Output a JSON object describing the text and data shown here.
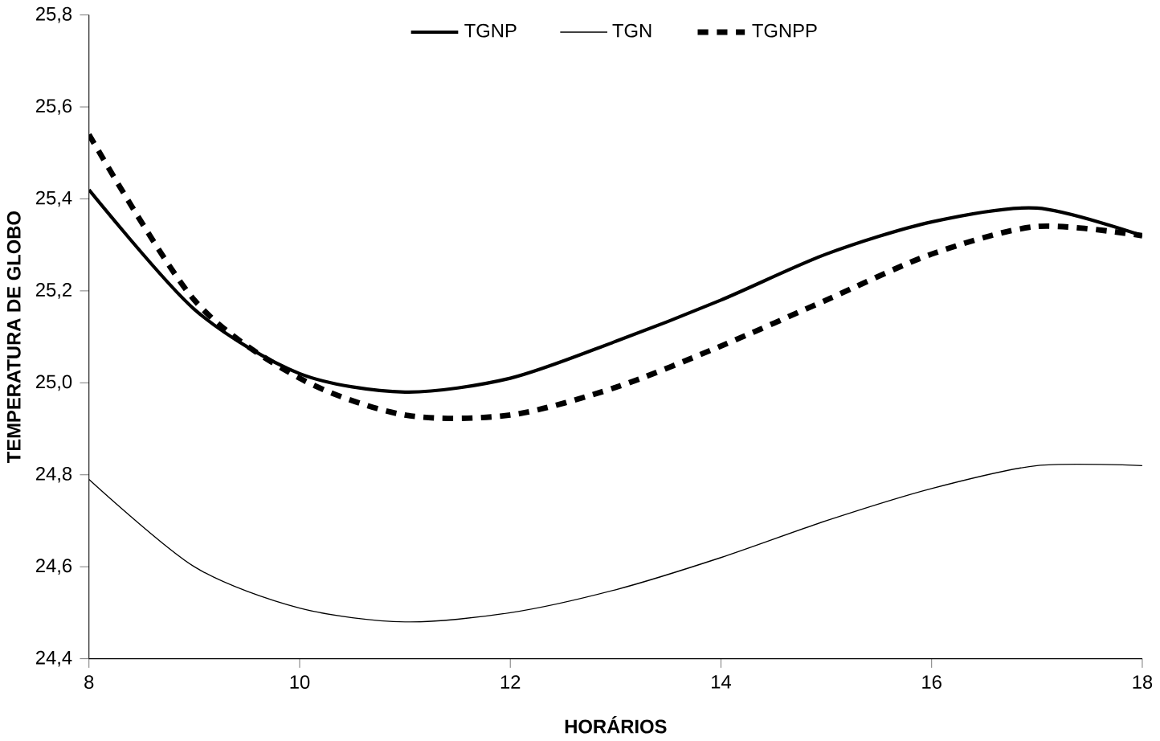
{
  "chart_data": {
    "type": "line",
    "xlabel": "HORÁRIOS",
    "ylabel": "TEMPERATURA DE GLOBO",
    "x": [
      8,
      9,
      10,
      11,
      12,
      13,
      14,
      15,
      16,
      17,
      18
    ],
    "series": [
      {
        "name": "TGNP",
        "color": "#000000",
        "line_style": "solid",
        "values": [
          25.42,
          25.16,
          25.02,
          24.98,
          25.01,
          25.09,
          25.18,
          25.28,
          25.35,
          25.38,
          25.32
        ]
      },
      {
        "name": "TGN",
        "color": "#000000",
        "line_style": "solid",
        "values": [
          24.79,
          24.6,
          24.51,
          24.48,
          24.5,
          24.55,
          24.62,
          24.7,
          24.77,
          24.82,
          24.82
        ]
      },
      {
        "name": "TGNPP",
        "color": "#000000",
        "line_style": "dashed",
        "values": [
          25.54,
          25.18,
          25.01,
          24.93,
          24.93,
          24.99,
          25.08,
          25.18,
          25.28,
          25.34,
          25.32
        ]
      }
    ],
    "xlim": [
      8,
      18
    ],
    "xticks": [
      8,
      10,
      12,
      14,
      16,
      18
    ],
    "ylim": [
      24.4,
      25.8
    ],
    "yticks": [
      {
        "value": 24.4,
        "label": "24,4"
      },
      {
        "value": 24.6,
        "label": "24,6"
      },
      {
        "value": 24.8,
        "label": "24,8"
      },
      {
        "value": 25.0,
        "label": "25,0"
      },
      {
        "value": 25.2,
        "label": "25,2"
      },
      {
        "value": 25.4,
        "label": "25,4"
      },
      {
        "value": 25.6,
        "label": "25,6"
      },
      {
        "value": 25.8,
        "label": "25,8"
      }
    ],
    "legend": "top",
    "grid": false,
    "marker": "none"
  }
}
